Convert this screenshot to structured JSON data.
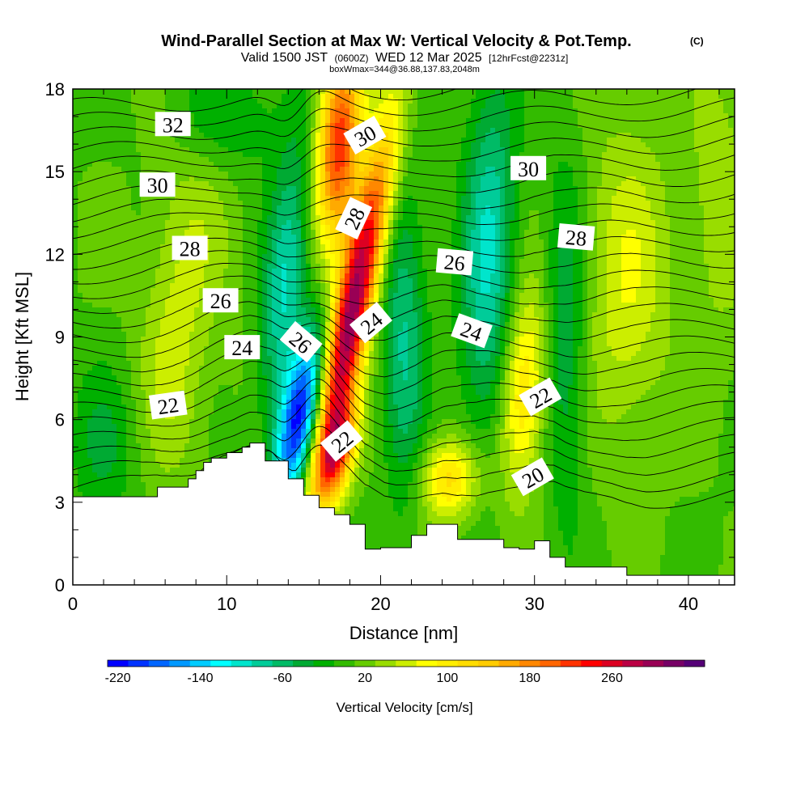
{
  "chart_data": {
    "type": "contour",
    "title": "Wind-Parallel Section at Max W: Vertical Velocity & Pot.Temp.",
    "title_mark": "(C)",
    "subtitle_parts": [
      "Valid 1500 JST",
      "(0600Z)",
      "WED 12 Mar 2025",
      "[12hrFcst@2231z]"
    ],
    "subtitle2": "boxWmax=344@36.88,137.83,2048m",
    "xlabel": "Distance [nm]",
    "ylabel": "Height [Kft MSL]",
    "xlim": [
      0,
      43
    ],
    "ylim": [
      0,
      18
    ],
    "x_ticks": [
      0,
      10,
      20,
      30,
      40
    ],
    "x_tick_labels": [
      "0",
      "10",
      "20",
      "30",
      "40"
    ],
    "y_ticks": [
      0,
      3,
      6,
      9,
      12,
      15,
      18
    ],
    "y_tick_labels": [
      "0",
      "3",
      "6",
      "9",
      "12",
      "15",
      "18"
    ],
    "colorbar": {
      "label": "Vertical Velocity [cm/s]",
      "tick_values": [
        -220,
        -140,
        -60,
        20,
        100,
        180,
        260
      ],
      "tick_labels": [
        "-220",
        "-140",
        "-60",
        "20",
        "100",
        "180",
        "260"
      ],
      "colors": [
        "#0000ff",
        "#0033ff",
        "#0066ff",
        "#0099ff",
        "#00ccff",
        "#00ffff",
        "#00e5cc",
        "#00cc99",
        "#00bb66",
        "#00aa33",
        "#00b000",
        "#33bb00",
        "#66cc00",
        "#99dd00",
        "#ccee00",
        "#ffff00",
        "#ffee00",
        "#ffdd00",
        "#ffcc00",
        "#ffaa00",
        "#ff8800",
        "#ff6600",
        "#ff3300",
        "#ff0000",
        "#dd0022",
        "#bb0044",
        "#990055",
        "#770066",
        "#550077"
      ]
    },
    "w_features": [
      {
        "x": 14.7,
        "y": 6.0,
        "sx": 0.9,
        "sy": 2.2,
        "amp": -220,
        "tilt": 0.3
      },
      {
        "x": 13.8,
        "y": 11.0,
        "sx": 1.0,
        "sy": 3.5,
        "amp": -100,
        "tilt": 0.15
      },
      {
        "x": 18.2,
        "y": 10.0,
        "sx": 0.9,
        "sy": 4.5,
        "amp": 300,
        "tilt": 0.35
      },
      {
        "x": 17.3,
        "y": 16.0,
        "sx": 1.0,
        "sy": 2.5,
        "amp": 220,
        "tilt": 0.1
      },
      {
        "x": 17.2,
        "y": 4.8,
        "sx": 0.8,
        "sy": 1.2,
        "amp": 180,
        "tilt": 0.3
      },
      {
        "x": 21.5,
        "y": 9.0,
        "sx": 1.0,
        "sy": 4.0,
        "amp": -80,
        "tilt": 0.0
      },
      {
        "x": 24.5,
        "y": 3.8,
        "sx": 1.3,
        "sy": 1.0,
        "amp": 110,
        "tilt": 0.0
      },
      {
        "x": 27.0,
        "y": 12.0,
        "sx": 1.2,
        "sy": 4.5,
        "amp": -100,
        "tilt": 0.05
      },
      {
        "x": 29.3,
        "y": 7.0,
        "sx": 1.0,
        "sy": 2.5,
        "amp": 110,
        "tilt": 0.1
      },
      {
        "x": 32.0,
        "y": 9.0,
        "sx": 1.0,
        "sy": 4.5,
        "amp": -60,
        "tilt": 0.0
      },
      {
        "x": 36.0,
        "y": 11.0,
        "sx": 2.0,
        "sy": 4.0,
        "amp": 60,
        "tilt": 0.0
      },
      {
        "x": 6.5,
        "y": 8.0,
        "sx": 1.5,
        "sy": 3.0,
        "amp": 45,
        "tilt": 0.0
      },
      {
        "x": 8.0,
        "y": 13.0,
        "sx": 2.0,
        "sy": 3.0,
        "amp": 30,
        "tilt": 0.0
      },
      {
        "x": 2.0,
        "y": 5.0,
        "sx": 1.5,
        "sy": 2.0,
        "amp": -40,
        "tilt": 0.0
      },
      {
        "x": 10.0,
        "y": 17.0,
        "sx": 2.5,
        "sy": 1.5,
        "amp": -40,
        "tilt": 0.0
      },
      {
        "x": 42.0,
        "y": 14.0,
        "sx": 1.5,
        "sy": 4.0,
        "amp": 35,
        "tilt": 0.0
      }
    ],
    "terrain": {
      "x": [
        0,
        5.5,
        5.5,
        7.5,
        7.5,
        8.0,
        8.0,
        8.5,
        8.5,
        9.0,
        9.0,
        10.0,
        10.0,
        11.0,
        11.0,
        11.5,
        11.5,
        12.5,
        12.5,
        14.0,
        14.0,
        15.0,
        15.0,
        16.0,
        16.0,
        17.0,
        17.0,
        18.0,
        18.0,
        19.0,
        19.0,
        20.0,
        20.0,
        22.0,
        22.0,
        23.0,
        23.0,
        25.0,
        25.0,
        28.0,
        28.0,
        29.0,
        29.0,
        30.0,
        30.0,
        31.0,
        31.0,
        32.0,
        32.0,
        36.0,
        36.0,
        39.0,
        39.0,
        43.0
      ],
      "y": [
        3.2,
        3.2,
        3.55,
        3.55,
        3.85,
        3.85,
        4.15,
        4.15,
        4.45,
        4.45,
        4.6,
        4.6,
        4.8,
        4.8,
        5.0,
        5.0,
        5.15,
        5.15,
        4.5,
        4.5,
        3.85,
        3.85,
        3.25,
        3.25,
        2.8,
        2.8,
        2.55,
        2.55,
        2.2,
        2.2,
        1.3,
        1.3,
        1.35,
        1.35,
        1.8,
        1.8,
        2.2,
        2.2,
        1.65,
        1.65,
        1.35,
        1.35,
        1.3,
        1.3,
        1.6,
        1.6,
        1.0,
        1.0,
        0.65,
        0.65,
        0.35,
        0.35,
        0.35,
        0.35
      ]
    },
    "theta_contour_labels": [
      {
        "text": "32",
        "x": 6.5,
        "y": 16.7,
        "angle": 0
      },
      {
        "text": "30",
        "x": 5.5,
        "y": 14.5,
        "angle": 0
      },
      {
        "text": "28",
        "x": 7.6,
        "y": 12.2,
        "angle": 0
      },
      {
        "text": "26",
        "x": 9.6,
        "y": 10.3,
        "angle": 0
      },
      {
        "text": "24",
        "x": 11.0,
        "y": 8.6,
        "angle": 0
      },
      {
        "text": "22",
        "x": 6.2,
        "y": 6.5,
        "angle": -8
      },
      {
        "text": "26",
        "x": 14.8,
        "y": 8.8,
        "angle": 40
      },
      {
        "text": "22",
        "x": 17.5,
        "y": 5.2,
        "angle": -40
      },
      {
        "text": "30",
        "x": 19.0,
        "y": 16.3,
        "angle": -30
      },
      {
        "text": "28",
        "x": 18.3,
        "y": 13.3,
        "angle": -65
      },
      {
        "text": "24",
        "x": 19.4,
        "y": 9.5,
        "angle": -40
      },
      {
        "text": "26",
        "x": 24.8,
        "y": 11.7,
        "angle": 5
      },
      {
        "text": "24",
        "x": 25.9,
        "y": 9.2,
        "angle": 20
      },
      {
        "text": "30",
        "x": 29.6,
        "y": 15.1,
        "angle": 0
      },
      {
        "text": "28",
        "x": 32.7,
        "y": 12.6,
        "angle": 5
      },
      {
        "text": "22",
        "x": 30.4,
        "y": 6.8,
        "angle": -30
      },
      {
        "text": "20",
        "x": 29.9,
        "y": 3.9,
        "angle": -30
      }
    ]
  }
}
